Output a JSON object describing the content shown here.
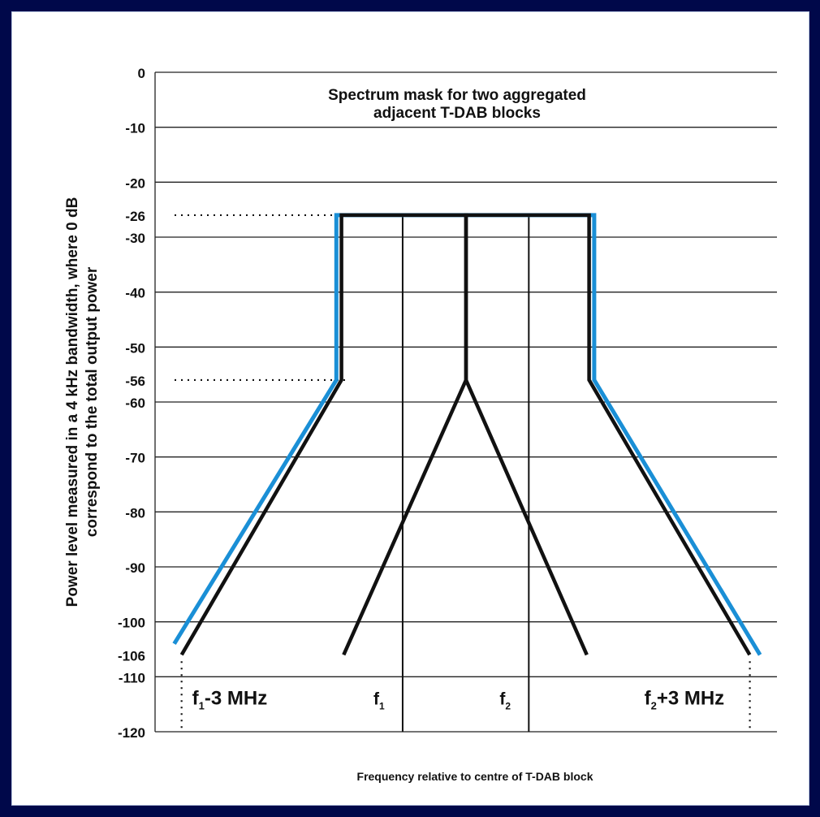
{
  "colors": {
    "background": "#00084a",
    "panel": "#ffffff",
    "mask": "#1a8fd6",
    "line": "#111111",
    "grid": "#222222"
  },
  "chart_data": {
    "type": "line",
    "title": "Spectrum mask for two aggregated\nadjacent T-DAB blocks",
    "ylabel": "Power level measured in a 4 kHz bandwidth, where 0 dB\ncorrespond  to the total output power",
    "xlabel": "Frequency relative to centre of T-DAB block",
    "ylim": [
      -120,
      0
    ],
    "yticks": [
      0,
      -10,
      -20,
      -26,
      -30,
      -40,
      -50,
      -56,
      -60,
      -70,
      -80,
      -90,
      -100,
      -106,
      -110,
      -120
    ],
    "grid": true,
    "x_markers": [
      {
        "label": "f1-3 MHz",
        "main": "f",
        "sub": "1",
        "suffix": "-3 MHz",
        "x": -3.0
      },
      {
        "label": "f1",
        "main": "f",
        "sub": "1",
        "suffix": "",
        "x": 0.0
      },
      {
        "label": "f2",
        "main": "f",
        "sub": "2",
        "suffix": "",
        "x": 1.712
      },
      {
        "label": "f2+3 MHz",
        "main": "f",
        "sub": "2",
        "suffix": "+3 MHz",
        "x": 4.712
      }
    ],
    "guides": [
      {
        "type": "horizontal",
        "y": -26
      },
      {
        "type": "horizontal",
        "y": -56
      },
      {
        "type": "vertical",
        "x": -3.0
      },
      {
        "type": "vertical",
        "x": 4.712
      }
    ],
    "series": [
      {
        "color": "#1a8fd6",
        "x": [
          -3.1,
          -0.9,
          -0.9,
          2.6,
          2.6,
          4.85
        ],
        "y": [
          -104,
          -56,
          -26,
          -26,
          -56,
          -106
        ]
      },
      {
        "color": "#111111",
        "x": [
          -3.0,
          -0.83,
          -0.83,
          0.86,
          0.86,
          2.5
        ],
        "y": [
          -106,
          -56,
          -26,
          -26,
          -56,
          -106
        ]
      },
      {
        "color": "#111111",
        "x": [
          -0.8,
          0.86,
          0.86,
          2.53,
          2.53,
          4.71
        ],
        "y": [
          -106,
          -56,
          -26,
          -26,
          -56,
          -106
        ]
      }
    ]
  }
}
